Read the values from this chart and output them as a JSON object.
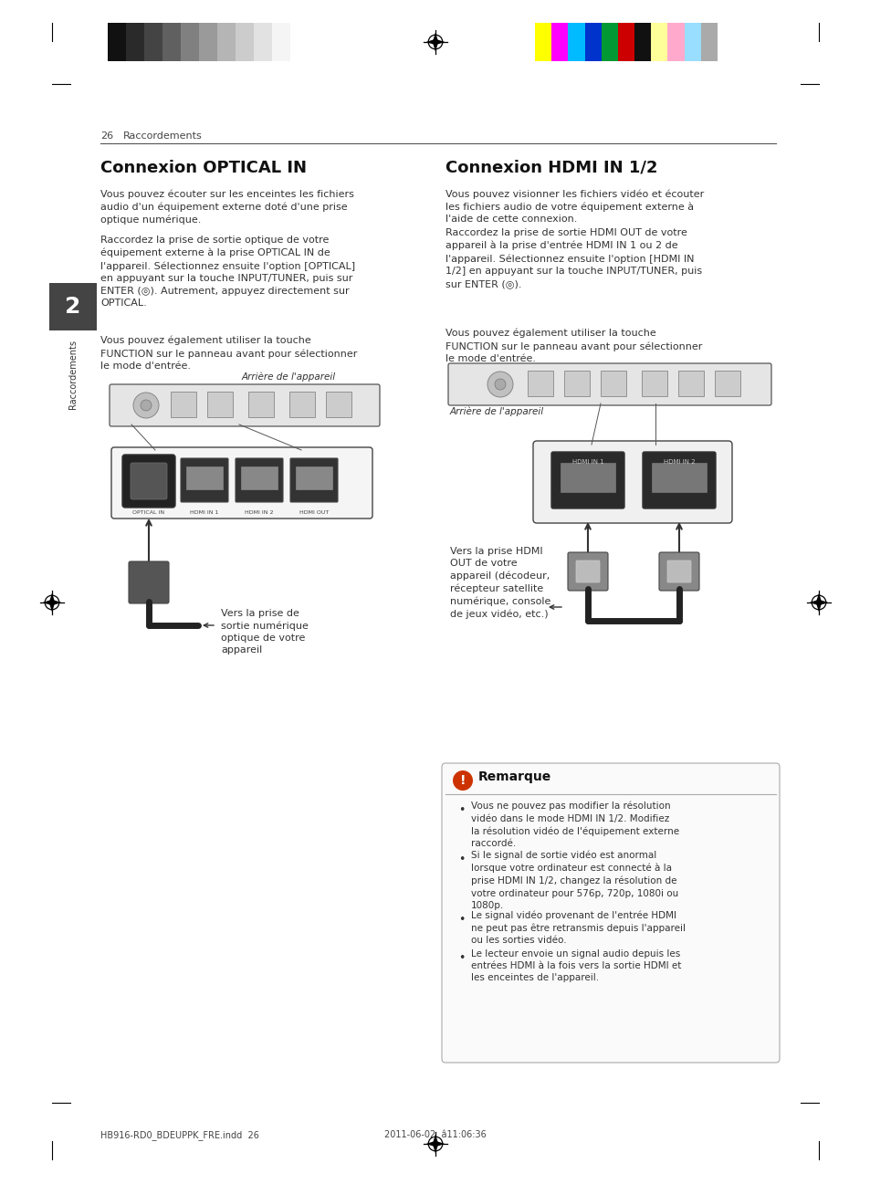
{
  "page_bg": "#ffffff",
  "page_width": 9.54,
  "page_height": 12.97,
  "dpi": 100,
  "header_color_bar_left_colors": [
    "#111111",
    "#2a2a2a",
    "#444444",
    "#606060",
    "#808080",
    "#9a9a9a",
    "#b5b5b5",
    "#cccccc",
    "#e2e2e2",
    "#f5f5f5"
  ],
  "header_color_bar_right_colors": [
    "#ffff00",
    "#ff00ff",
    "#00bbff",
    "#0033cc",
    "#009933",
    "#cc0000",
    "#111111",
    "#ffff99",
    "#ffaacc",
    "#99ddff",
    "#aaaaaa"
  ],
  "page_number": "26",
  "section_label": "Raccordements",
  "left_title": "Connexion OPTICAL IN",
  "left_para1": "Vous pouvez écouter sur les enceintes les fichiers\naudio d'un équipement externe doté d'une prise\noptique numérique.",
  "left_para2": "Raccordez la prise de sortie optique de votre\néquipement externe à la prise OPTICAL IN de\nl'appareil. Sélectionnez ensuite l'option [OPTICAL]\nen appuyant sur la touche INPUT/TUNER, puis sur\nENTER (◎). Autrement, appuyez directement sur\nOPTICAL.",
  "left_para3": "Vous pouvez également utiliser la touche\nFUNCTION sur le panneau avant pour sélectionner\nle mode d'entrée.",
  "left_fig_label": "Arrière de l'appareil",
  "left_cable_label": "Vers la prise de\nsortie numérique\noptique de votre\nappareil",
  "right_title": "Connexion HDMI IN 1/2",
  "right_para1": "Vous pouvez visionner les fichiers vidéo et écouter\nles fichiers audio de votre équipement externe à\nl'aide de cette connexion.",
  "right_para2": "Raccordez la prise de sortie HDMI OUT de votre\nappareil à la prise d'entrée HDMI IN 1 ou 2 de\nl'appareil. Sélectionnez ensuite l'option [HDMI IN\n1/2] en appuyant sur la touche INPUT/TUNER, puis\nsur ENTER (◎).",
  "right_para3": "Vous pouvez également utiliser la touche\nFUNCTION sur le panneau avant pour sélectionner\nle mode d'entrée.",
  "right_fig_label": "Arrière de l'appareil",
  "right_cable_label": "Vers la prise HDMI\nOUT de votre\nappareil (décodeur,\nrécepteur satellite\nnumérique, console\nde jeux vidéo, etc.)",
  "note_title": "Remarque",
  "note_bullets": [
    "Vous ne pouvez pas modifier la résolution\nvidéo dans le mode HDMI IN 1/2. Modifiez\nla résolution vidéo de l'équipement externe\nraccordé.",
    "Si le signal de sortie vidéo est anormal\nlorsque votre ordinateur est connecté à la\nprise HDMI IN 1/2, changez la résolution de\nvotre ordinateur pour 576p, 720p, 1080i ou\n1080p.",
    "Le signal vidéo provenant de l'entrée HDMI\nne peut pas être retransmis depuis l'appareil\nou les sorties vidéo.",
    "Le lecteur envoie un signal audio depuis les\nentrées HDMI à la fois vers la sortie HDMI et\nles enceintes de l'appareil."
  ],
  "footer_left": "HB916-RD0_BDEUPPK_FRE.indd  26",
  "footer_right": "2011-06-02  â11:06:36",
  "tab_bg": "#444444",
  "tab_text": "Raccordements",
  "tab_number": "2"
}
